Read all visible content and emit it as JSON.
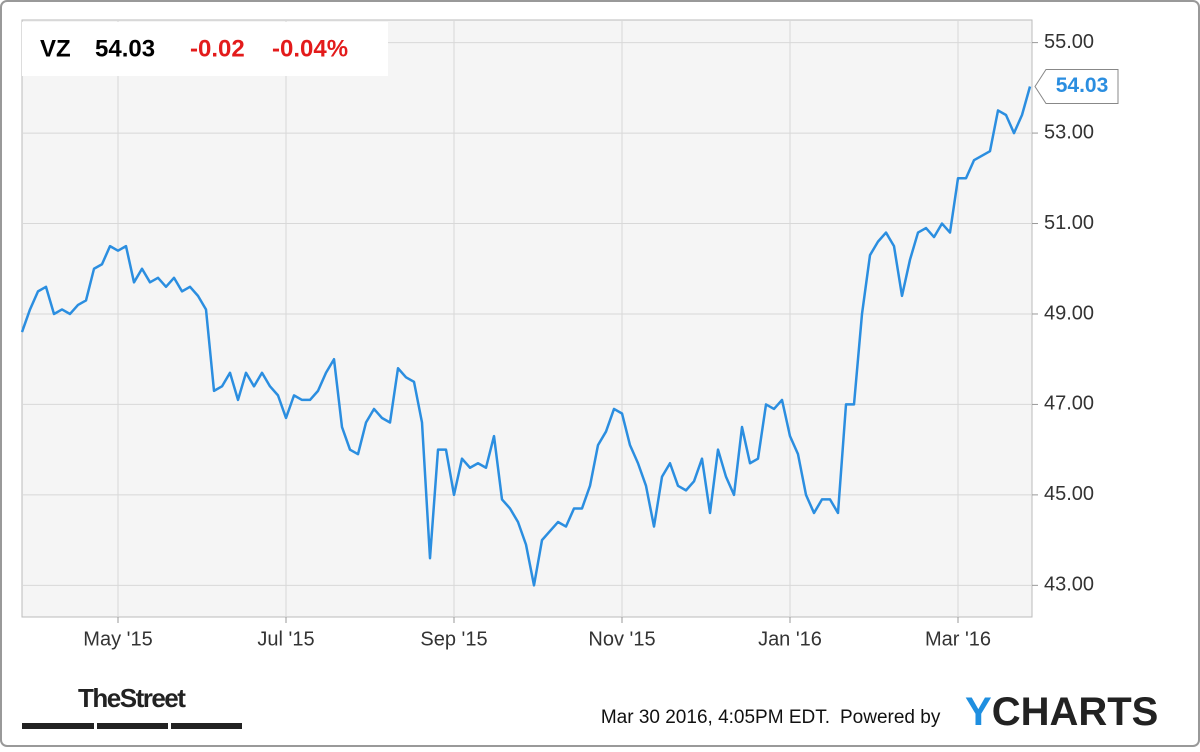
{
  "chart_data": {
    "type": "line",
    "header": {
      "ticker": "VZ",
      "change": -0.02,
      "change_percent": "-0.04%"
    },
    "categories": [
      null,
      null,
      null,
      null,
      null,
      null,
      null,
      null,
      null,
      null,
      null,
      null,
      "May '15",
      null,
      null,
      null,
      null,
      null,
      null,
      null,
      null,
      null,
      null,
      null,
      null,
      null,
      null,
      null,
      null,
      null,
      null,
      null,
      null,
      "Jul '15",
      null,
      null,
      null,
      null,
      null,
      null,
      null,
      null,
      null,
      null,
      null,
      null,
      null,
      null,
      null,
      null,
      null,
      null,
      null,
      null,
      "Sep '15",
      null,
      null,
      null,
      null,
      null,
      null,
      null,
      null,
      null,
      null,
      null,
      null,
      null,
      null,
      null,
      null,
      null,
      null,
      null,
      null,
      "Nov '15",
      null,
      null,
      null,
      null,
      null,
      null,
      null,
      null,
      null,
      null,
      null,
      null,
      null,
      null,
      null,
      null,
      null,
      null,
      null,
      null,
      "Jan '16",
      null,
      null,
      null,
      null,
      null,
      null,
      null,
      null,
      null,
      null,
      null,
      null,
      null,
      null,
      null,
      null,
      null,
      null,
      null,
      null,
      "Mar '16",
      null,
      null,
      null,
      null,
      null,
      null,
      null,
      null,
      null
    ],
    "series": [
      {
        "name": "VZ",
        "color": "#2b8ee0",
        "values": [
          48.6,
          49.1,
          49.5,
          49.6,
          49.0,
          49.1,
          49.0,
          49.2,
          49.3,
          50.0,
          50.1,
          50.5,
          50.4,
          50.5,
          49.7,
          50.0,
          49.7,
          49.8,
          49.6,
          49.8,
          49.5,
          49.6,
          49.4,
          49.1,
          47.3,
          47.4,
          47.7,
          47.1,
          47.7,
          47.4,
          47.7,
          47.4,
          47.2,
          46.7,
          47.2,
          47.1,
          47.1,
          47.3,
          47.7,
          48.0,
          46.5,
          46.0,
          45.9,
          46.6,
          46.9,
          46.7,
          46.6,
          47.8,
          47.6,
          47.5,
          46.6,
          43.6,
          46.0,
          46.0,
          45.0,
          45.8,
          45.6,
          45.7,
          45.6,
          46.3,
          44.9,
          44.7,
          44.4,
          43.9,
          43.0,
          44.0,
          44.2,
          44.4,
          44.3,
          44.7,
          44.7,
          45.2,
          46.1,
          46.4,
          46.9,
          46.8,
          46.1,
          45.7,
          45.2,
          44.3,
          45.4,
          45.7,
          45.2,
          45.1,
          45.3,
          45.8,
          44.6,
          46.0,
          45.4,
          45.0,
          46.5,
          45.7,
          45.8,
          47.0,
          46.9,
          47.1,
          46.3,
          45.9,
          45.0,
          44.6,
          44.9,
          44.9,
          44.6,
          47.0,
          47.0,
          49.0,
          50.3,
          50.6,
          50.8,
          50.5,
          49.4,
          50.2,
          50.8,
          50.9,
          50.7,
          51.0,
          50.8,
          52.0,
          52.0,
          52.4,
          52.5,
          52.6,
          53.5,
          53.4,
          53.0,
          53.4,
          54.03
        ]
      }
    ],
    "ylim": [
      42.3,
      55.5
    ],
    "yticks": [
      {
        "value": 43,
        "label": "43.00"
      },
      {
        "value": 45,
        "label": "45.00"
      },
      {
        "value": 47,
        "label": "47.00"
      },
      {
        "value": 49,
        "label": "49.00"
      },
      {
        "value": 51,
        "label": "51.00"
      },
      {
        "value": 53,
        "label": "53.00"
      },
      {
        "value": 55,
        "label": "55.00"
      }
    ],
    "grid": true,
    "footer": {
      "source_logo": "TheStreet",
      "timestamp": "Mar 30 2016, 4:05PM EDT.",
      "powered_by": "Powered by",
      "brand": [
        "Y",
        "CHARTS"
      ]
    }
  }
}
